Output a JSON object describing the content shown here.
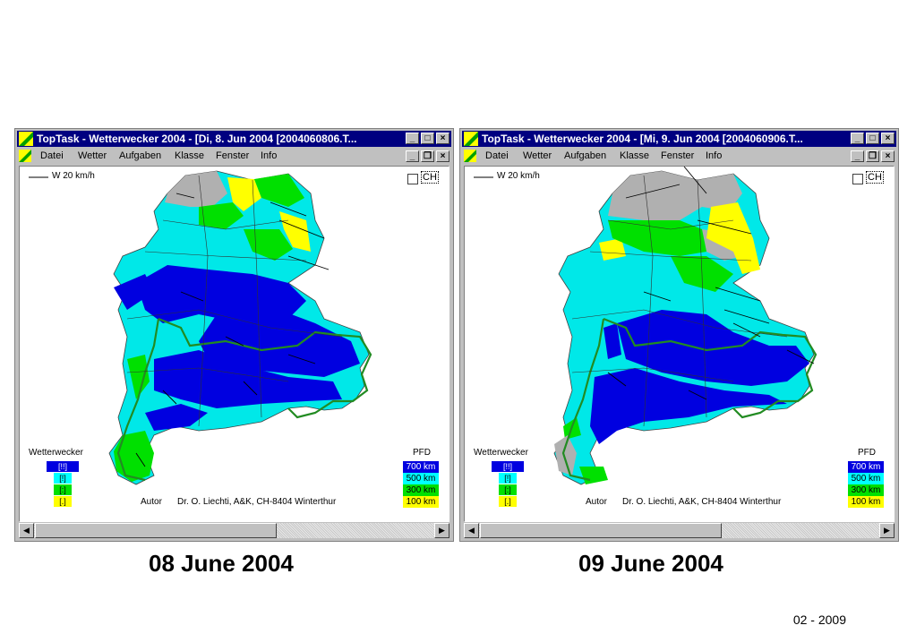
{
  "windows": [
    {
      "title": "TopTask - Wetterwecker 2004 - [Di, 8. Jun 2004 [2004060806.T...",
      "menu": [
        "Datei",
        "Wetter",
        "Aufgaben",
        "Klasse",
        "Fenster",
        "Info"
      ],
      "wind_legend": "W 20 km/h",
      "ch_label": "CH",
      "wetterwecker_title": "Wetterwecker",
      "wetterwecker_levels": [
        "[!!]",
        "[!]",
        "[:]",
        "[.]"
      ],
      "pfd_title": "PFD",
      "pfd_levels": [
        "700 km",
        "500 km",
        "300 km",
        "100 km"
      ],
      "author_label": "Autor",
      "author_text": "Dr. O. Liechti, A&K, CH-8404 Winterthur",
      "caption": "08 June 2004"
    },
    {
      "title": "TopTask - Wetterwecker 2004 - [Mi, 9. Jun 2004 [2004060906.T...",
      "menu": [
        "Datei",
        "Wetter",
        "Aufgaben",
        "Klasse",
        "Fenster",
        "Info"
      ],
      "wind_legend": "W 20 km/h",
      "ch_label": "CH",
      "wetterwecker_title": "Wetterwecker",
      "wetterwecker_levels": [
        "[!!]",
        "[!]",
        "[:]",
        "[.]"
      ],
      "pfd_title": "PFD",
      "pfd_levels": [
        "700 km",
        "500 km",
        "300 km",
        "100 km"
      ],
      "author_label": "Autor",
      "author_text": "Dr. O. Liechti, A&K, CH-8404 Winterthur",
      "caption": "09 June 2004"
    }
  ],
  "footer": "02 - 2009",
  "colors": {
    "level_700": "#0000e0",
    "level_500": "#00ffff",
    "level_300": "#00e000",
    "level_100": "#ffff00",
    "no_data": "#b0b0b0",
    "border_green": "#228b22"
  }
}
